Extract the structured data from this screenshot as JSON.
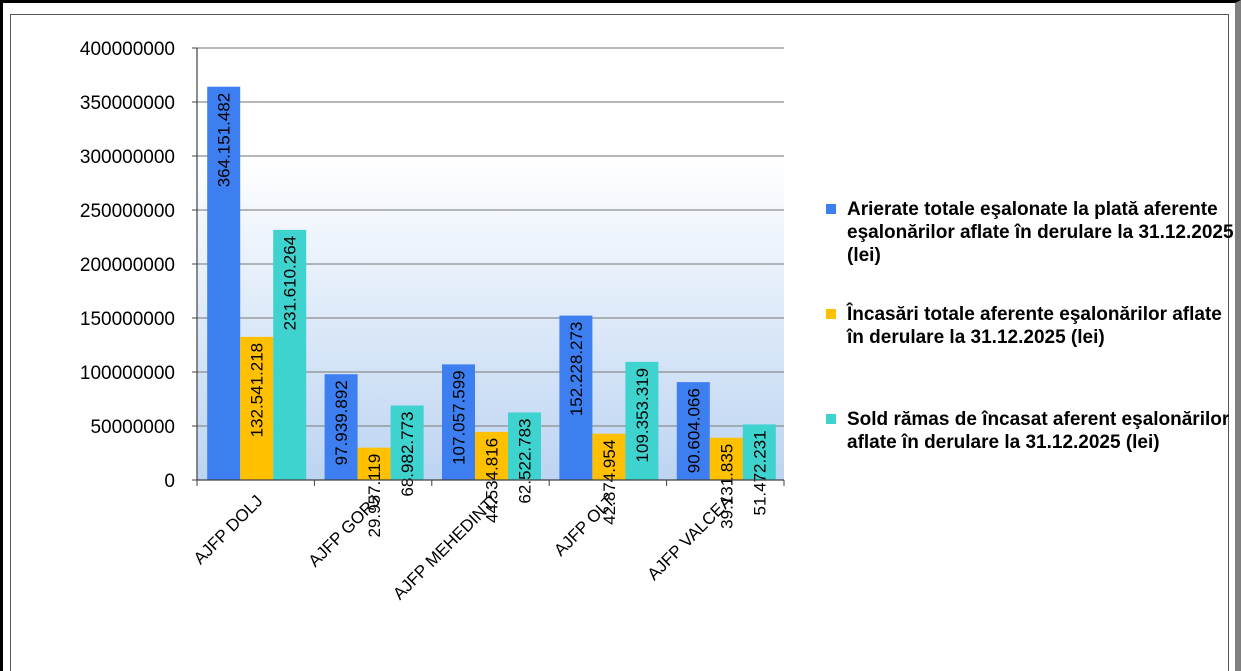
{
  "chart_data": {
    "type": "bar",
    "categories": [
      "AJFP DOLJ",
      "AJFP GORJ",
      "AJFP MEHEDINTI",
      "AJFP OLT",
      "AJFP VALCEA"
    ],
    "series": [
      {
        "name": "Arierate totale eşalonate la plată aferente eşalonărilor aflate în derulare la 31.12.2025 (lei)",
        "values": [
          364151482,
          97939892,
          107057599,
          152228273,
          90604066
        ],
        "labels": [
          "364.151.482",
          "97.939.892",
          "107.057.599",
          "152.228.273",
          "90.604.066"
        ],
        "color": "#3d7ff0"
      },
      {
        "name": "Încasări  totale aferente eşalonărilor aflate în derulare la 31.12.2025 (lei)",
        "values": [
          132541218,
          29957119,
          44534816,
          42874954,
          39131835
        ],
        "labels": [
          "132.541.218",
          "29.957.119",
          "44.534.816",
          "42.874.954",
          "39.131.835"
        ],
        "color": "#ffc000"
      },
      {
        "name": "Sold rămas de încasat aferent eşalonărilor aflate în derulare la 31.12.2025 (lei)",
        "values": [
          231610264,
          68982773,
          62522783,
          109353319,
          51472231
        ],
        "labels": [
          "231.610.264",
          "68.982.773",
          "62.522.783",
          "109.353.319",
          "51.472.231"
        ],
        "color": "#3fd3cf"
      }
    ],
    "yticks": [
      "0",
      "50000000",
      "100000000",
      "150000000",
      "200000000",
      "250000000",
      "300000000",
      "350000000",
      "400000000"
    ],
    "ylim": [
      0,
      400000000
    ],
    "grid": true,
    "legend_position": "right"
  }
}
